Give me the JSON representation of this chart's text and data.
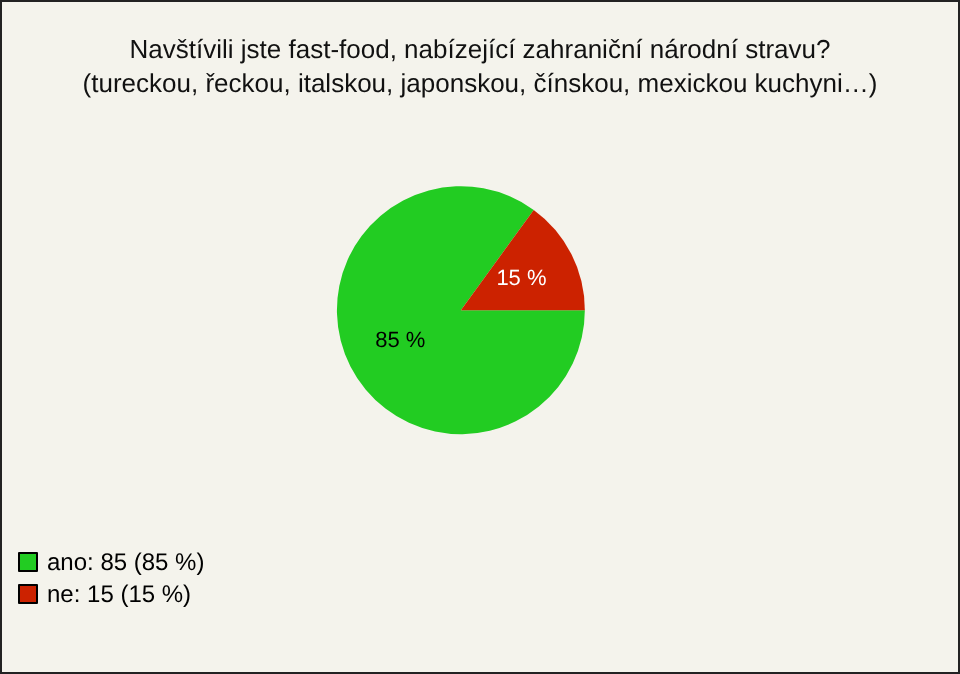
{
  "chart_data": {
    "type": "pie",
    "title": "Navštívili jste fast-food, nabízející zahraniční národní stravu?\n(tureckou, řeckou, italskou, japonskou, čínskou, mexickou kuchyni…)",
    "categories": [
      "ano: 85 (85 %)",
      "ne: 15 (15 %)"
    ],
    "values": [
      85,
      15
    ],
    "colors": [
      "#22cc22",
      "#cc2200"
    ],
    "value_labels": [
      "85 %",
      "15 %"
    ],
    "legend": "bottom left"
  }
}
